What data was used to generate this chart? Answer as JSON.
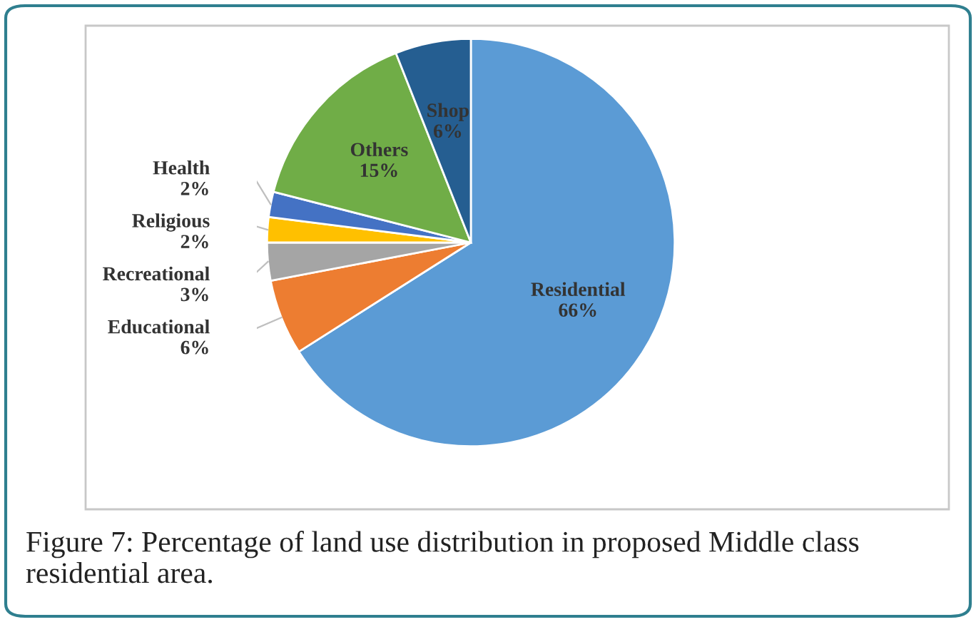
{
  "chart_data": {
    "type": "pie",
    "categories": [
      "Residential",
      "Educational",
      "Recreational",
      "Religious",
      "Health",
      "Others",
      "Shop"
    ],
    "values": [
      66,
      6,
      3,
      2,
      2,
      15,
      6
    ],
    "value_labels": [
      "66%",
      "6%",
      "3%",
      "2%",
      "2%",
      "15%",
      "6%"
    ],
    "colors": [
      "#5b9bd5",
      "#ed7d31",
      "#a5a5a5",
      "#ffc000",
      "#4472c4",
      "#70ad47",
      "#255e91"
    ],
    "legend": false,
    "annotations": [
      "Figure 7: Percentage of land use distribution in proposed Middle class residential area."
    ]
  }
}
